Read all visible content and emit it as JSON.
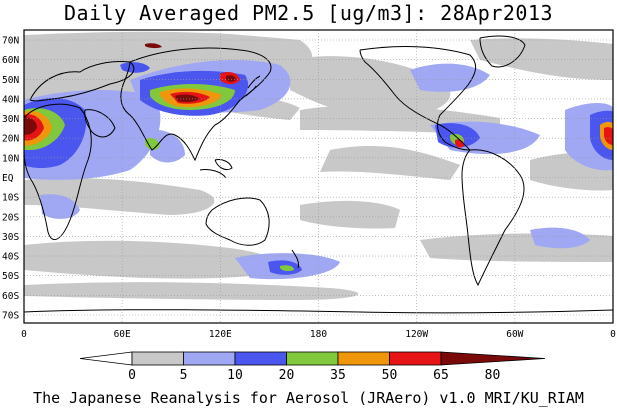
{
  "title": "Daily Averaged PM2.5 [ug/m3]: 28Apr2013",
  "footer": "The Japanese Reanalysis for Aerosol (JRAero) v1.0 MRI/KU_RIAM",
  "lat_labels": [
    "70N",
    "60N",
    "50N",
    "40N",
    "30N",
    "20N",
    "10N",
    "EQ",
    "10S",
    "20S",
    "30S",
    "40S",
    "50S",
    "60S",
    "70S"
  ],
  "lon_labels": [
    "0",
    "60E",
    "120E",
    "180",
    "120W",
    "60W",
    "0"
  ],
  "colorbar": {
    "labels": [
      "0",
      "5",
      "10",
      "20",
      "35",
      "50",
      "65",
      "80"
    ],
    "colors": [
      "#ffffff",
      "#c8c8c8",
      "#a0a8f4",
      "#4a56ee",
      "#82c83c",
      "#f0960a",
      "#e61414",
      "#7a0a0a"
    ]
  },
  "colors": {
    "land_outline": "#000000",
    "frame": "#000000",
    "grid": "#9a9a9a"
  }
}
